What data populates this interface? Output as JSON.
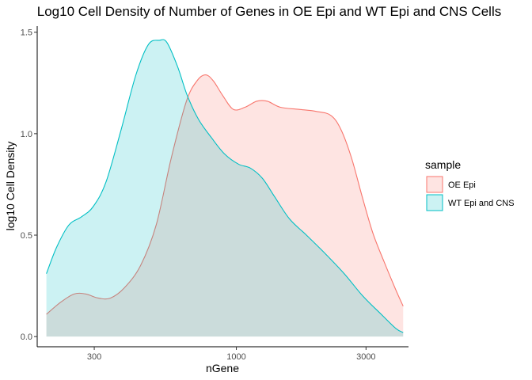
{
  "chart_data": {
    "type": "area",
    "title": "Log10 Cell Density of Number of Genes in OE Epi and WT Epi and CNS Cells",
    "xlabel": "nGene",
    "ylabel": "log10 Cell Density",
    "x_scale": "log10",
    "xlim": [
      185,
      4300
    ],
    "ylim": [
      -0.05,
      1.53
    ],
    "x_ticks": [
      300,
      1000,
      3000
    ],
    "x_tick_labels": [
      "300",
      "1000",
      "3000"
    ],
    "y_ticks": [
      0.0,
      0.5,
      1.0,
      1.5
    ],
    "y_tick_labels": [
      "0.0",
      "0.5",
      "1.0",
      "1.5"
    ],
    "grid": false,
    "legend": {
      "title": "sample",
      "position": "right"
    },
    "series": [
      {
        "name": "OE Epi",
        "line_color": "#F8766D",
        "fill_color": "#F8766D",
        "x": [
          200,
          226,
          253,
          279,
          310,
          344,
          387,
          444,
          507,
          576,
          655,
          716,
          770,
          823,
          889,
          974,
          1075,
          1189,
          1299,
          1453,
          1692,
          1965,
          2227,
          2427,
          2654,
          2904,
          3180,
          3494,
          3863,
          4110
        ],
        "values": [
          0.11,
          0.17,
          0.21,
          0.21,
          0.19,
          0.19,
          0.24,
          0.35,
          0.55,
          0.88,
          1.16,
          1.26,
          1.29,
          1.26,
          1.19,
          1.12,
          1.13,
          1.16,
          1.16,
          1.13,
          1.12,
          1.11,
          1.09,
          1.02,
          0.88,
          0.69,
          0.51,
          0.37,
          0.23,
          0.15
        ]
      },
      {
        "name": "WT Epi and CNS",
        "line_color": "#00BFC4",
        "fill_color": "#00BFC4",
        "x": [
          200,
          218,
          242,
          269,
          297,
          331,
          375,
          427,
          475,
          520,
          555,
          608,
          659,
          726,
          810,
          905,
          1018,
          1127,
          1247,
          1382,
          1569,
          1811,
          2120,
          2495,
          2920,
          3413,
          3864,
          4110
        ],
        "values": [
          0.31,
          0.44,
          0.55,
          0.59,
          0.64,
          0.76,
          1.01,
          1.29,
          1.44,
          1.46,
          1.45,
          1.33,
          1.19,
          1.07,
          0.98,
          0.9,
          0.85,
          0.83,
          0.78,
          0.69,
          0.58,
          0.5,
          0.41,
          0.31,
          0.2,
          0.11,
          0.04,
          0.02
        ]
      }
    ]
  }
}
